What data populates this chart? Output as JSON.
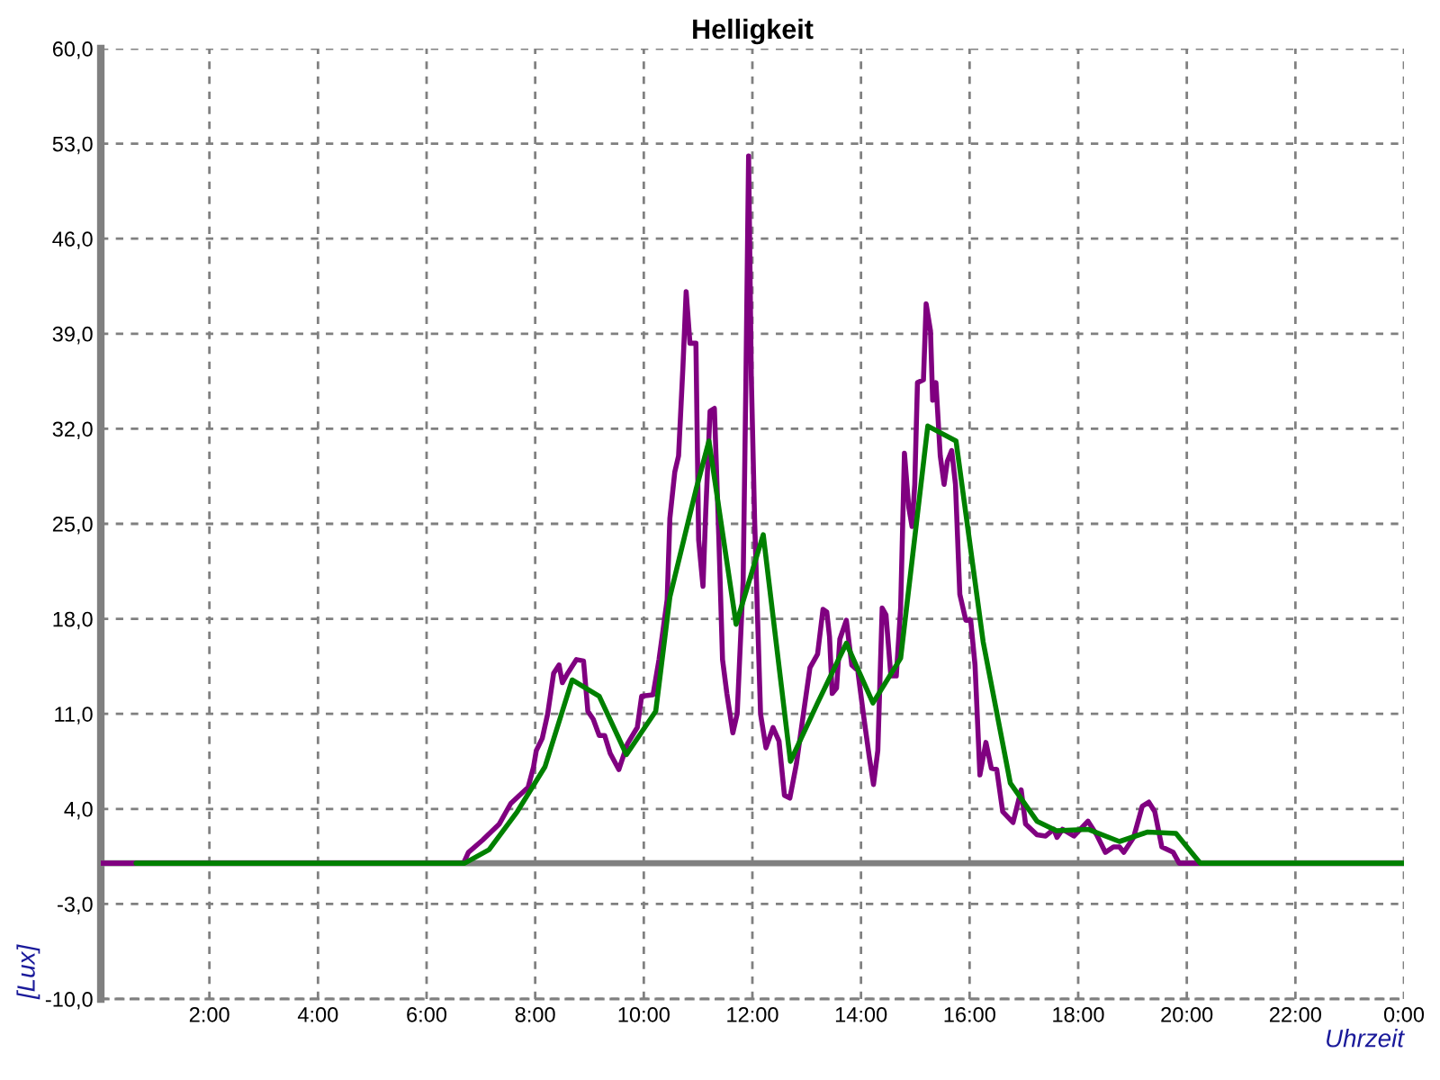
{
  "chart_data": {
    "type": "line",
    "title": "Helligkeit",
    "xlabel": "Uhrzeit",
    "ylabel": "[Lux]",
    "xlim": [
      0,
      24
    ],
    "xticks": [
      {
        "value": 2,
        "label": "2:00"
      },
      {
        "value": 4,
        "label": "4:00"
      },
      {
        "value": 6,
        "label": "6:00"
      },
      {
        "value": 8,
        "label": "8:00"
      },
      {
        "value": 10,
        "label": "10:00"
      },
      {
        "value": 12,
        "label": "12:00"
      },
      {
        "value": 14,
        "label": "14:00"
      },
      {
        "value": 16,
        "label": "16:00"
      },
      {
        "value": 18,
        "label": "18:00"
      },
      {
        "value": 20,
        "label": "20:00"
      },
      {
        "value": 22,
        "label": "22:00"
      },
      {
        "value": 24,
        "label": "0:00"
      }
    ],
    "ylim": [
      -10,
      60
    ],
    "yticks": [
      {
        "value": -10,
        "label": "-10,0"
      },
      {
        "value": -3,
        "label": "-3,0"
      },
      {
        "value": 4,
        "label": "4,0"
      },
      {
        "value": 11,
        "label": "11,0"
      },
      {
        "value": 18,
        "label": "18,0"
      },
      {
        "value": 25,
        "label": "25,0"
      },
      {
        "value": 32,
        "label": "32,0"
      },
      {
        "value": 39,
        "label": "39,0"
      },
      {
        "value": 46,
        "label": "46,0"
      },
      {
        "value": 53,
        "label": "53,0"
      },
      {
        "value": 60,
        "label": "60,0"
      }
    ],
    "grid": true,
    "ref_lines": [
      {
        "axis": "y",
        "value": 0,
        "color": "#808080"
      }
    ],
    "series": [
      {
        "color": "#800080",
        "x": [
          0,
          6.68,
          6.77,
          7.03,
          7.34,
          7.55,
          7.87,
          7.97,
          8.02,
          8.13,
          8.23,
          8.34,
          8.44,
          8.5,
          8.6,
          8.76,
          8.89,
          8.97,
          9.07,
          9.18,
          9.28,
          9.38,
          9.54,
          9.7,
          9.88,
          9.96,
          10.17,
          10.28,
          10.43,
          10.48,
          10.57,
          10.64,
          10.72,
          10.78,
          10.85,
          10.96,
          11.01,
          11.09,
          11.14,
          11.22,
          11.3,
          11.38,
          11.45,
          11.53,
          11.64,
          11.72,
          11.83,
          11.88,
          11.93,
          11.98,
          12.04,
          12.15,
          12.25,
          12.38,
          12.49,
          12.59,
          12.69,
          12.81,
          12.95,
          13.06,
          13.2,
          13.3,
          13.37,
          13.42,
          13.47,
          13.55,
          13.61,
          13.73,
          13.83,
          13.94,
          14.05,
          14.15,
          14.23,
          14.31,
          14.39,
          14.46,
          14.55,
          14.65,
          14.73,
          14.8,
          14.88,
          14.94,
          14.99,
          15.04,
          15.15,
          15.2,
          15.28,
          15.32,
          15.38,
          15.46,
          15.53,
          15.59,
          15.67,
          15.74,
          15.82,
          15.93,
          16.02,
          16.1,
          16.19,
          16.3,
          16.4,
          16.5,
          16.61,
          16.8,
          16.95,
          17.03,
          17.24,
          17.4,
          17.55,
          17.61,
          17.71,
          17.92,
          18.18,
          18.34,
          18.5,
          18.65,
          18.76,
          18.84,
          19.02,
          19.18,
          19.3,
          19.41,
          19.54,
          19.75,
          19.86,
          20.22
        ],
        "values": [
          0,
          0,
          0.8,
          1.7,
          2.9,
          4.4,
          5.6,
          7.1,
          8.3,
          9.2,
          11.0,
          14.0,
          14.6,
          13.3,
          14.0,
          15.0,
          14.9,
          11.2,
          10.6,
          9.4,
          9.4,
          8.1,
          6.9,
          8.8,
          10.0,
          12.3,
          12.4,
          15.0,
          19.4,
          25.4,
          28.8,
          30.0,
          36.5,
          42.1,
          38.3,
          38.3,
          23.8,
          20.4,
          25.8,
          33.3,
          33.5,
          24.2,
          15.0,
          12.5,
          9.6,
          11.0,
          20.8,
          35.4,
          52.1,
          35.8,
          25.4,
          11.0,
          8.5,
          10.0,
          9.0,
          5.0,
          4.8,
          7.3,
          11.3,
          14.4,
          15.4,
          18.7,
          18.5,
          16.7,
          12.5,
          12.9,
          16.5,
          17.9,
          14.6,
          14.2,
          10.8,
          7.9,
          5.8,
          8.3,
          18.8,
          18.3,
          13.8,
          13.8,
          18.8,
          30.2,
          26.2,
          24.8,
          27.9,
          35.4,
          35.6,
          41.2,
          39.2,
          34.1,
          35.4,
          30.0,
          27.9,
          29.6,
          30.4,
          27.9,
          19.8,
          17.9,
          17.9,
          14.6,
          6.5,
          8.9,
          7.0,
          6.9,
          3.8,
          3.0,
          5.4,
          2.9,
          2.1,
          2.0,
          2.5,
          1.9,
          2.5,
          2.0,
          3.1,
          2.1,
          0.8,
          1.2,
          1.2,
          0.8,
          1.9,
          4.2,
          4.5,
          3.8,
          1.2,
          0.8,
          0,
          0
        ]
      },
      {
        "color": "#008000",
        "x": [
          0.65,
          6.7,
          7.15,
          7.67,
          8.18,
          8.68,
          9.18,
          9.68,
          10.22,
          10.48,
          10.96,
          11.2,
          11.7,
          12.2,
          12.7,
          13.2,
          13.73,
          14.22,
          14.73,
          15.23,
          15.75,
          16.25,
          16.75,
          17.24,
          17.6,
          18.18,
          18.76,
          19.28,
          19.8,
          20.25,
          24
        ],
        "values": [
          0,
          0,
          1.0,
          3.8,
          7.1,
          13.5,
          12.3,
          8.0,
          11.2,
          19.6,
          27.5,
          31.1,
          17.6,
          24.2,
          7.5,
          11.8,
          16.2,
          11.8,
          15.1,
          32.2,
          31.1,
          16.3,
          5.9,
          3.1,
          2.4,
          2.5,
          1.6,
          2.3,
          2.2,
          0,
          0
        ]
      }
    ]
  }
}
